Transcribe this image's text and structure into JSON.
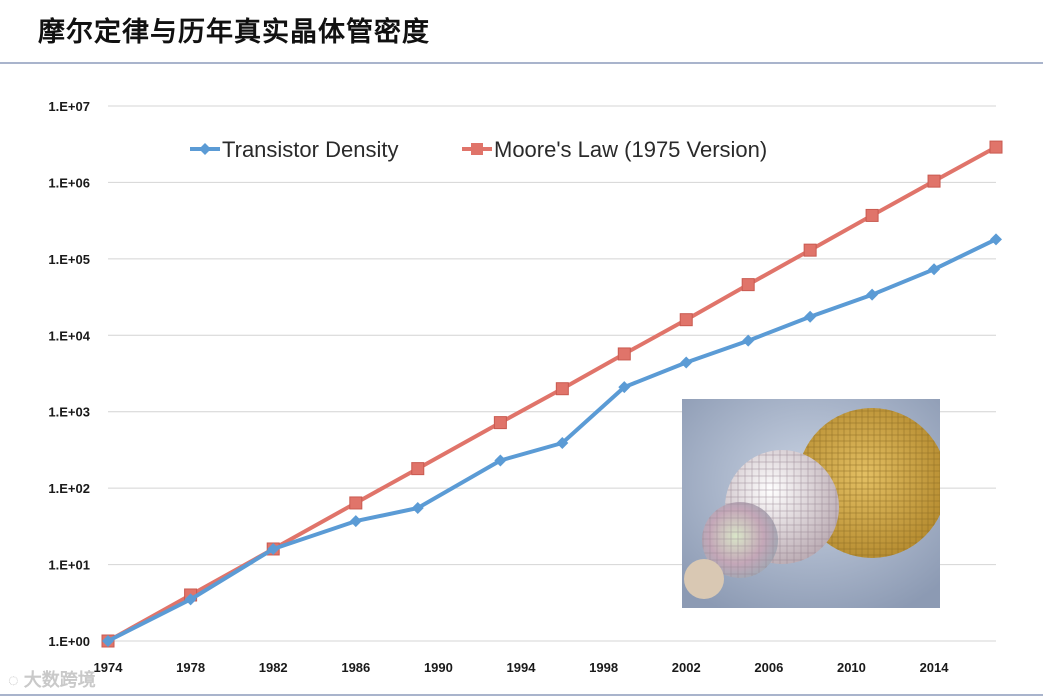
{
  "page": {
    "title": "摩尔定律与历年真实晶体管密度"
  },
  "watermark": {
    "text": "大数跨境"
  },
  "colors": {
    "transistor_density": "#5b9bd5",
    "moores_law": "#e0746a",
    "gridline": "#d4d4d4"
  },
  "chart_data": {
    "type": "line",
    "x_type": "year",
    "yscale": "log",
    "ylim": [
      1,
      10000000
    ],
    "xlim": [
      1974,
      2017
    ],
    "grid": true,
    "legend": "top-left",
    "y_ticks": [
      1,
      10,
      100,
      1000,
      10000,
      100000,
      1000000,
      10000000
    ],
    "y_tick_labels": [
      "1.E+00",
      "1.E+01",
      "1.E+02",
      "1.E+03",
      "1.E+04",
      "1.E+05",
      "1.E+06",
      "1.E+07"
    ],
    "x_ticks": [
      1974,
      1978,
      1982,
      1986,
      1990,
      1994,
      1998,
      2002,
      2006,
      2010,
      2014
    ],
    "x_tick_labels": [
      "1974",
      "1978",
      "1982",
      "1986",
      "1990",
      "1994",
      "1998",
      "2002",
      "2006",
      "2010",
      "2014"
    ],
    "series": [
      {
        "name": "Transistor Density",
        "marker": "diamond",
        "points": [
          [
            1974,
            1
          ],
          [
            1978,
            3.5
          ],
          [
            1982,
            16
          ],
          [
            1986,
            37
          ],
          [
            1989,
            55
          ],
          [
            1993,
            230
          ],
          [
            1996,
            390
          ],
          [
            1999,
            2100
          ],
          [
            2002,
            4400
          ],
          [
            2005,
            8500
          ],
          [
            2008,
            17500
          ],
          [
            2011,
            34000
          ],
          [
            2014,
            73000
          ],
          [
            2017,
            180000
          ]
        ]
      },
      {
        "name": "Moore's Law (1975 Version)",
        "marker": "square",
        "points": [
          [
            1974,
            1
          ],
          [
            1978,
            4
          ],
          [
            1982,
            16
          ],
          [
            1986,
            64
          ],
          [
            1989,
            180
          ],
          [
            1993,
            720
          ],
          [
            1996,
            2000
          ],
          [
            1999,
            5700
          ],
          [
            2002,
            16000
          ],
          [
            2005,
            46000
          ],
          [
            2008,
            130000
          ],
          [
            2011,
            370000
          ],
          [
            2014,
            1040000
          ],
          [
            2017,
            2900000
          ]
        ]
      }
    ]
  }
}
